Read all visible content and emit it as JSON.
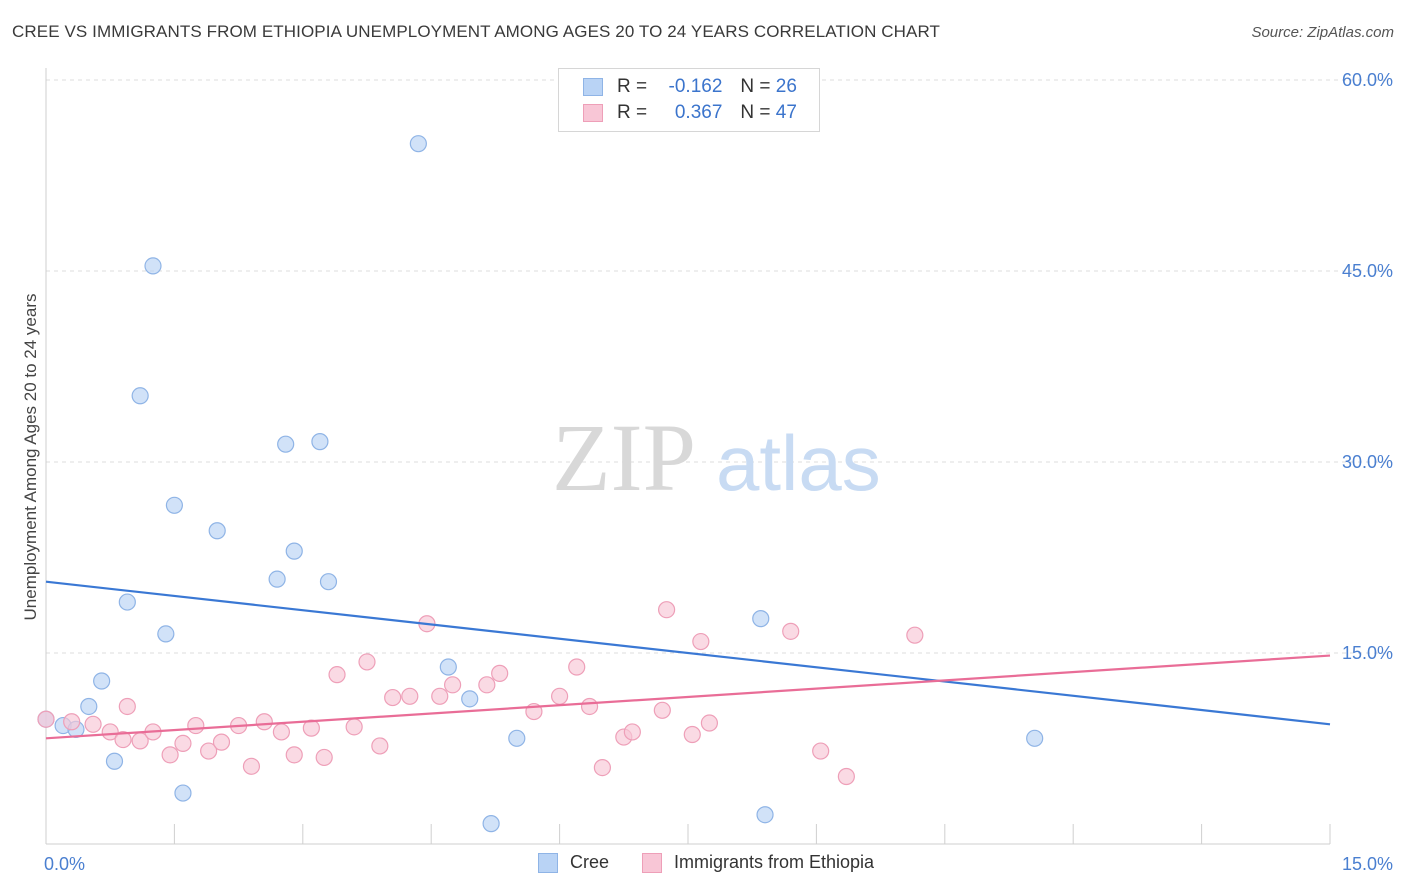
{
  "title": "CREE VS IMMIGRANTS FROM ETHIOPIA UNEMPLOYMENT AMONG AGES 20 TO 24 YEARS CORRELATION CHART",
  "source": "Source: ZipAtlas.com",
  "watermark": {
    "zip": "ZIP",
    "atlas": "atlas"
  },
  "legend": {
    "rows": [
      {
        "r_label": "R =",
        "r_value": "-0.162",
        "n_label": "N =",
        "n_value": "26"
      },
      {
        "r_label": "R =",
        "r_value": "0.367",
        "n_label": "N =",
        "n_value": "47"
      }
    ]
  },
  "bottom_legend": {
    "cree": "Cree",
    "ethiopia": "Immigrants from Ethiopia"
  },
  "colors": {
    "cree_fill": "#b9d3f5",
    "cree_stroke": "#8fb4e6",
    "cree_line": "#3a78d4",
    "eth_fill": "#f8c6d6",
    "eth_stroke": "#ee9fb8",
    "eth_line": "#e96d97",
    "tick": "#4a7fd0",
    "grid": "#dcdcdc"
  },
  "chart_data": {
    "type": "scatter",
    "title": "CREE VS IMMIGRANTS FROM ETHIOPIA UNEMPLOYMENT AMONG AGES 20 TO 24 YEARS CORRELATION CHART",
    "xlabel": "",
    "ylabel": "Unemployment Among Ages 20 to 24 years",
    "xlim": [
      0,
      15
    ],
    "ylim": [
      0,
      60
    ],
    "x_tick_labels": [
      "0.0%",
      "15.0%"
    ],
    "y_ticks": [
      15,
      30,
      45,
      60
    ],
    "y_tick_labels": [
      "15.0%",
      "30.0%",
      "45.0%",
      "60.0%"
    ],
    "grid": true,
    "legend_position": "top-center",
    "series": [
      {
        "name": "Cree",
        "r": -0.162,
        "n": 26,
        "trend": {
          "x": [
            0,
            15
          ],
          "y": [
            20.6,
            9.4
          ]
        },
        "points": [
          [
            0.0,
            9.8
          ],
          [
            0.2,
            9.3
          ],
          [
            0.35,
            9.0
          ],
          [
            0.5,
            10.8
          ],
          [
            0.65,
            12.8
          ],
          [
            0.8,
            6.5
          ],
          [
            0.95,
            19.0
          ],
          [
            1.1,
            35.2
          ],
          [
            1.25,
            45.4
          ],
          [
            1.4,
            16.5
          ],
          [
            1.5,
            26.6
          ],
          [
            1.6,
            4.0
          ],
          [
            2.0,
            24.6
          ],
          [
            2.7,
            20.8
          ],
          [
            2.8,
            31.4
          ],
          [
            2.9,
            23.0
          ],
          [
            3.2,
            31.6
          ],
          [
            3.3,
            20.6
          ],
          [
            4.35,
            55.0
          ],
          [
            4.7,
            13.9
          ],
          [
            4.95,
            11.4
          ],
          [
            5.2,
            1.6
          ],
          [
            5.5,
            8.3
          ],
          [
            8.35,
            17.7
          ],
          [
            8.4,
            2.3
          ],
          [
            11.55,
            8.3
          ]
        ]
      },
      {
        "name": "Immigrants from Ethiopia",
        "r": 0.367,
        "n": 47,
        "trend": {
          "x": [
            0,
            15
          ],
          "y": [
            8.3,
            14.8
          ]
        },
        "points": [
          [
            0.0,
            9.8
          ],
          [
            0.3,
            9.6
          ],
          [
            0.55,
            9.4
          ],
          [
            0.75,
            8.8
          ],
          [
            0.9,
            8.2
          ],
          [
            0.95,
            10.8
          ],
          [
            1.1,
            8.1
          ],
          [
            1.25,
            8.8
          ],
          [
            1.45,
            7.0
          ],
          [
            1.6,
            7.9
          ],
          [
            1.75,
            9.3
          ],
          [
            1.9,
            7.3
          ],
          [
            2.05,
            8.0
          ],
          [
            2.25,
            9.3
          ],
          [
            2.4,
            6.1
          ],
          [
            2.55,
            9.6
          ],
          [
            2.75,
            8.8
          ],
          [
            2.9,
            7.0
          ],
          [
            3.1,
            9.1
          ],
          [
            3.25,
            6.8
          ],
          [
            3.4,
            13.3
          ],
          [
            3.6,
            9.2
          ],
          [
            3.75,
            14.3
          ],
          [
            3.9,
            7.7
          ],
          [
            4.05,
            11.5
          ],
          [
            4.25,
            11.6
          ],
          [
            4.45,
            17.3
          ],
          [
            4.6,
            11.6
          ],
          [
            4.75,
            12.5
          ],
          [
            5.15,
            12.5
          ],
          [
            5.3,
            13.4
          ],
          [
            5.7,
            10.4
          ],
          [
            6.0,
            11.6
          ],
          [
            6.2,
            13.9
          ],
          [
            6.35,
            10.8
          ],
          [
            6.5,
            6.0
          ],
          [
            6.75,
            8.4
          ],
          [
            6.85,
            8.8
          ],
          [
            7.2,
            10.5
          ],
          [
            7.25,
            18.4
          ],
          [
            7.55,
            8.6
          ],
          [
            7.65,
            15.9
          ],
          [
            7.75,
            9.5
          ],
          [
            8.7,
            16.7
          ],
          [
            9.05,
            7.3
          ],
          [
            9.35,
            5.3
          ],
          [
            10.15,
            16.4
          ]
        ]
      }
    ]
  }
}
